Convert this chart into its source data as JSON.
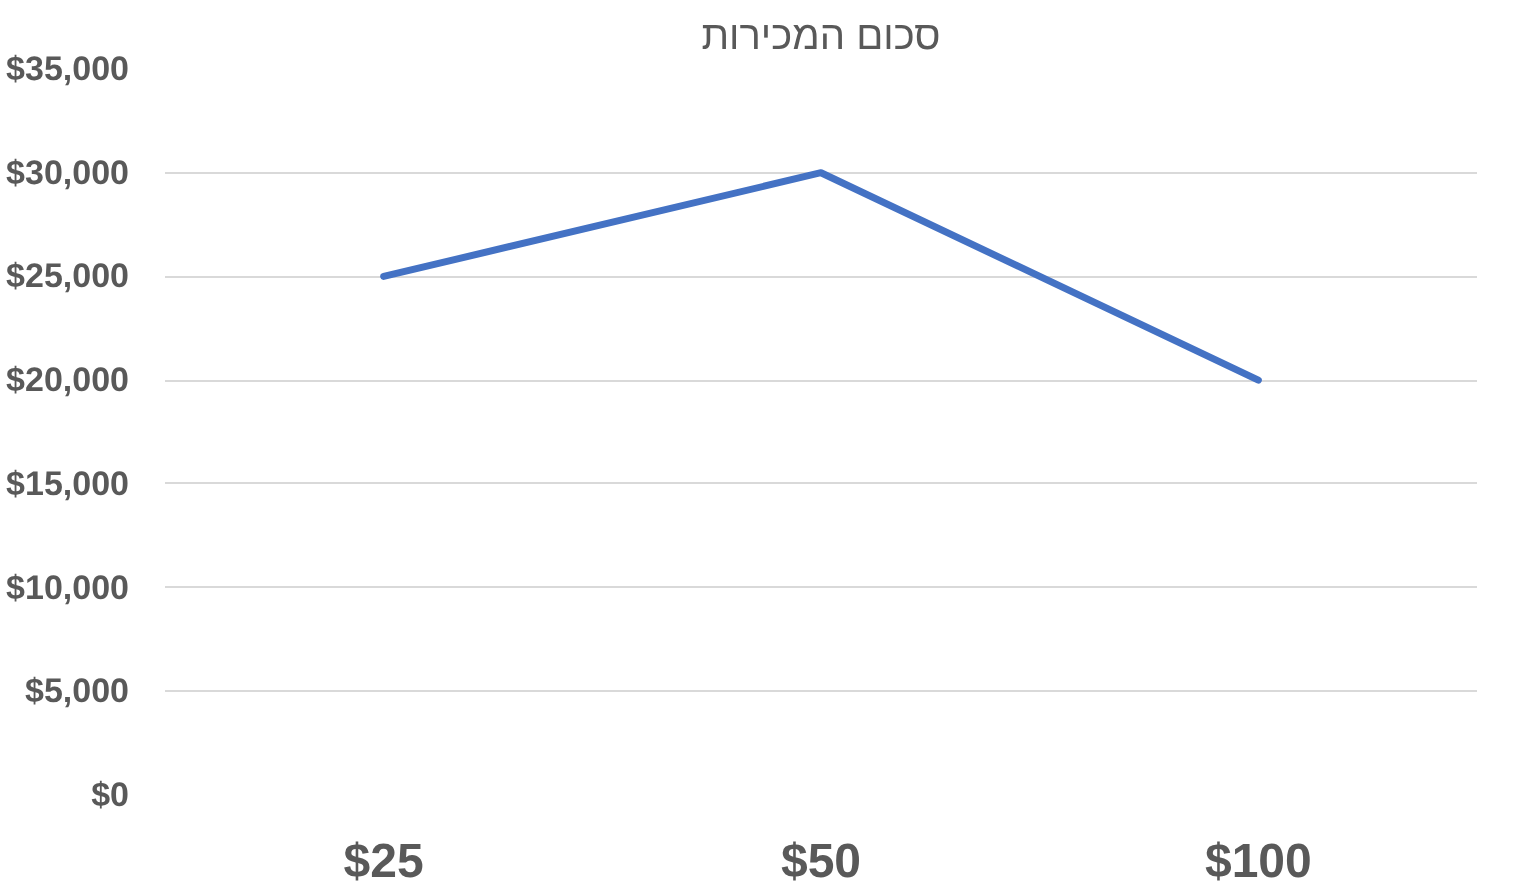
{
  "chart_data": {
    "type": "line",
    "title": "סכום המכירות",
    "categories": [
      "$25",
      "$50",
      "$100"
    ],
    "series": [
      {
        "color": "#4472c4",
        "values": [
          25000,
          30000,
          20000
        ]
      }
    ],
    "ylim": [
      0,
      35000
    ],
    "yticks": [
      {
        "value": 0,
        "label": "$0"
      },
      {
        "value": 5000,
        "label": "$5,000"
      },
      {
        "value": 10000,
        "label": "$10,000"
      },
      {
        "value": 15000,
        "label": "$15,000"
      },
      {
        "value": 20000,
        "label": "$20,000"
      },
      {
        "value": 25000,
        "label": "$25,000"
      },
      {
        "value": 30000,
        "label": "$30,000"
      },
      {
        "value": 35000,
        "label": "$35,000"
      }
    ],
    "grid": "y",
    "marker": "none",
    "line_style": "solid"
  }
}
